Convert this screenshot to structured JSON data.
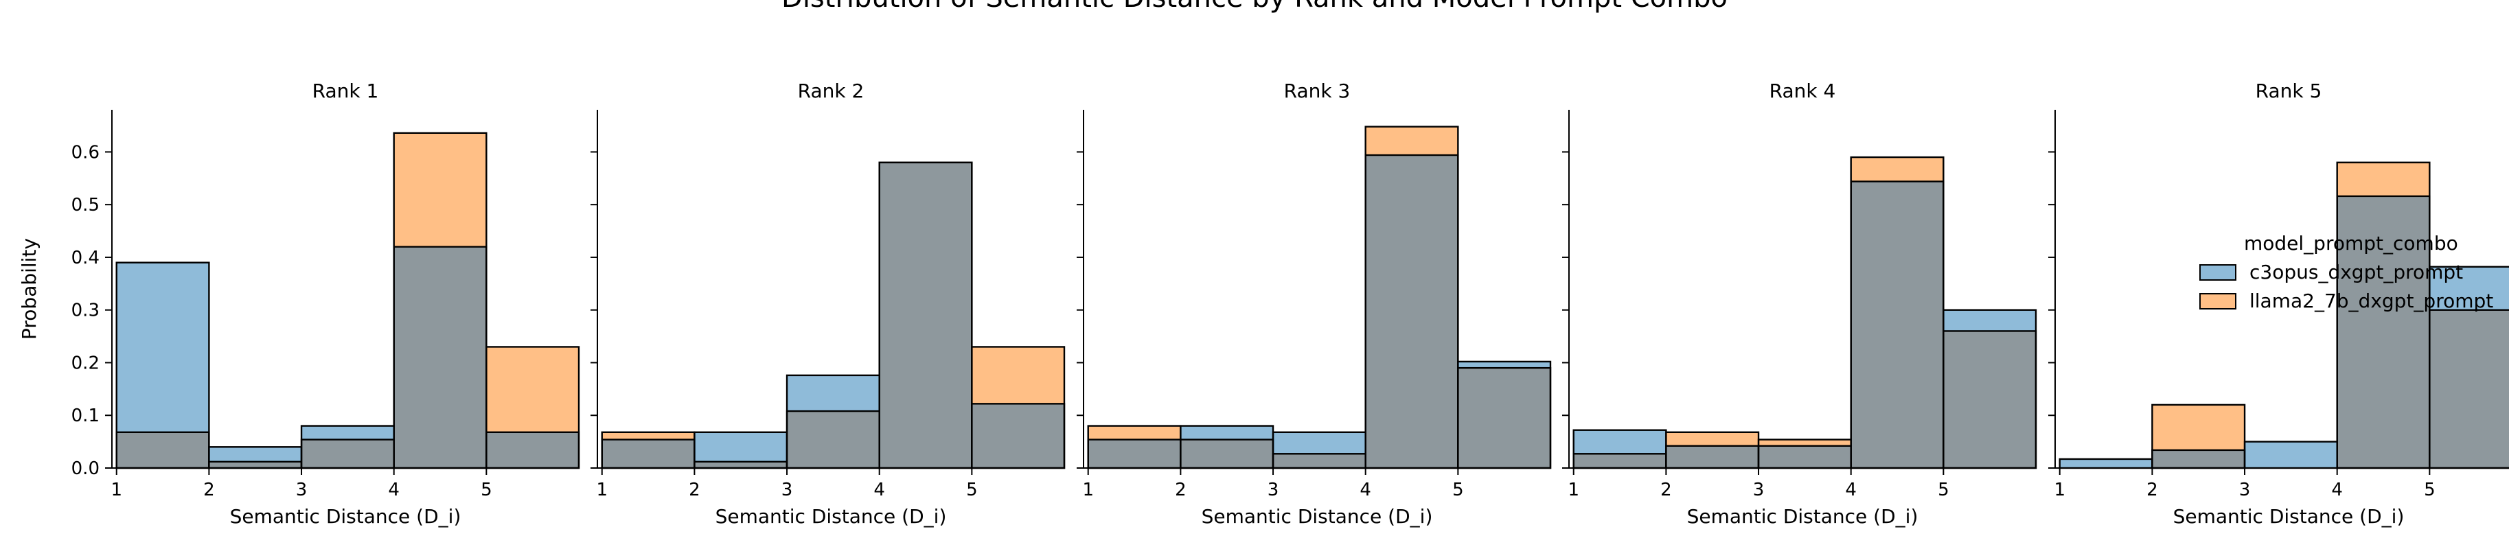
{
  "chart_data": {
    "type": "bar",
    "title": "Distribution of Semantic Distance by Rank and Model Prompt Combo",
    "xlabel": "Semantic Distance (D_i)",
    "ylabel": "Probability",
    "xlim": [
      0.95,
      6.0
    ],
    "ylim": [
      0,
      0.68
    ],
    "x_ticks": [
      "1",
      "2",
      "3",
      "4",
      "5"
    ],
    "y_ticks": [
      "0.0",
      "0.1",
      "0.2",
      "0.3",
      "0.4",
      "0.5",
      "0.6"
    ],
    "bin_edges": [
      1,
      2,
      3,
      4,
      5,
      6
    ],
    "legend": {
      "title": "model_prompt_combo",
      "placement": "right",
      "entries": [
        "c3opus_dxgpt_prompt",
        "llama2_7b_dxgpt_prompt"
      ]
    },
    "colors": {
      "c3opus_dxgpt_prompt": "#1f77b4",
      "llama2_7b_dxgpt_prompt": "#ff7f0e",
      "overlap": "#8e989d"
    },
    "panels": [
      {
        "title": "Rank 1",
        "series": [
          {
            "name": "c3opus_dxgpt_prompt",
            "values": [
              0.39,
              0.04,
              0.08,
              0.42,
              0.068
            ]
          },
          {
            "name": "llama2_7b_dxgpt_prompt",
            "values": [
              0.068,
              0.012,
              0.054,
              0.636,
              0.23
            ]
          }
        ]
      },
      {
        "title": "Rank 2",
        "series": [
          {
            "name": "c3opus_dxgpt_prompt",
            "values": [
              0.054,
              0.068,
              0.176,
              0.58,
              0.122
            ]
          },
          {
            "name": "llama2_7b_dxgpt_prompt",
            "values": [
              0.068,
              0.012,
              0.108,
              0.58,
              0.23
            ]
          }
        ]
      },
      {
        "title": "Rank 3",
        "series": [
          {
            "name": "c3opus_dxgpt_prompt",
            "values": [
              0.054,
              0.08,
              0.068,
              0.594,
              0.202
            ]
          },
          {
            "name": "llama2_7b_dxgpt_prompt",
            "values": [
              0.08,
              0.054,
              0.027,
              0.648,
              0.19
            ]
          }
        ]
      },
      {
        "title": "Rank 4",
        "series": [
          {
            "name": "c3opus_dxgpt_prompt",
            "values": [
              0.072,
              0.042,
              0.042,
              0.544,
              0.3
            ]
          },
          {
            "name": "llama2_7b_dxgpt_prompt",
            "values": [
              0.027,
              0.068,
              0.054,
              0.59,
              0.26
            ]
          }
        ]
      },
      {
        "title": "Rank 5",
        "series": [
          {
            "name": "c3opus_dxgpt_prompt",
            "values": [
              0.017,
              0.034,
              0.05,
              0.516,
              0.382
            ]
          },
          {
            "name": "llama2_7b_dxgpt_prompt",
            "values": [
              0.0,
              0.12,
              0.0,
              0.58,
              0.3
            ]
          }
        ]
      }
    ]
  }
}
